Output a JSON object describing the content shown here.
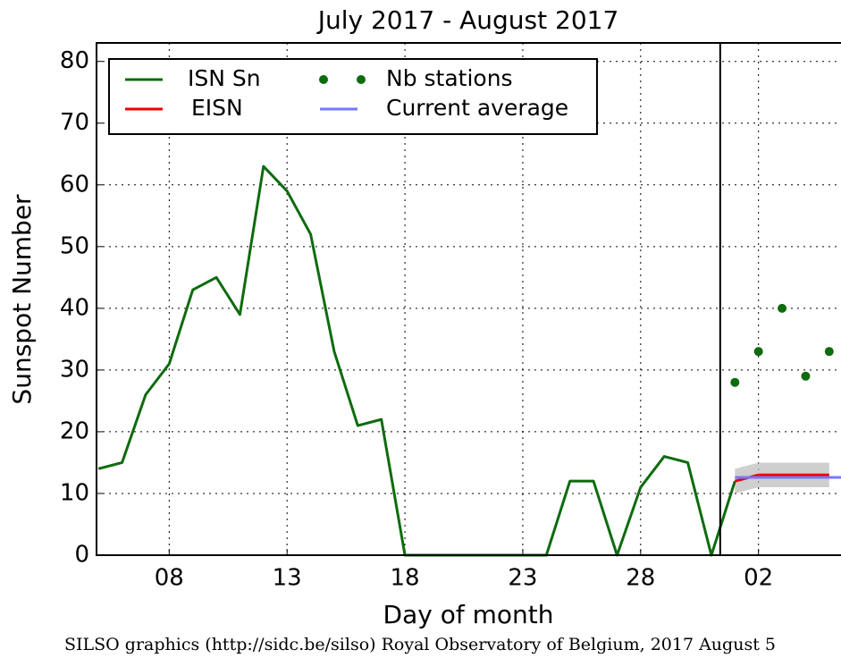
{
  "chart_data": {
    "type": "line",
    "title": "July 2017 - August 2017",
    "xlabel": "Day of month",
    "ylabel": "Sunspot Number",
    "footer": "SILSO graphics (http://sidc.be/silso) Royal Observatory of Belgium, 2017 August 5",
    "xlim": [
      "2017-07-04T22:00",
      "2017-08-05T12:00"
    ],
    "xticks": [
      {
        "value": "2017-07-08",
        "label": "08"
      },
      {
        "value": "2017-07-13",
        "label": "13"
      },
      {
        "value": "2017-07-18",
        "label": "18"
      },
      {
        "value": "2017-07-23",
        "label": "23"
      },
      {
        "value": "2017-07-28",
        "label": "28"
      },
      {
        "value": "2017-08-02",
        "label": "02"
      }
    ],
    "ylim": [
      0,
      83
    ],
    "yticks": [
      0,
      10,
      20,
      30,
      40,
      50,
      60,
      70,
      80
    ],
    "grid": true,
    "legend": "upper left",
    "vline_x": "2017-07-31T09:00",
    "series": [
      {
        "name": "ISN Sn",
        "kind": "line",
        "color": "#0e6b0e",
        "x": [
          "2017-07-05",
          "2017-07-06",
          "2017-07-07",
          "2017-07-08",
          "2017-07-09",
          "2017-07-10",
          "2017-07-11",
          "2017-07-12",
          "2017-07-13",
          "2017-07-14",
          "2017-07-15",
          "2017-07-16",
          "2017-07-17",
          "2017-07-18",
          "2017-07-19",
          "2017-07-20",
          "2017-07-21",
          "2017-07-22",
          "2017-07-23",
          "2017-07-24",
          "2017-07-25",
          "2017-07-26",
          "2017-07-27",
          "2017-07-28",
          "2017-07-29",
          "2017-07-30",
          "2017-07-31",
          "2017-08-01"
        ],
        "values": [
          14,
          15,
          26,
          31,
          43,
          45,
          39,
          63,
          59,
          52,
          33,
          21,
          22,
          0,
          0,
          0,
          0,
          0,
          0,
          0,
          12,
          12,
          0,
          11,
          16,
          15,
          0,
          12
        ]
      },
      {
        "name": "Nb stations",
        "kind": "dots",
        "color": "#0e6b0e",
        "x": [
          "2017-08-01",
          "2017-08-02",
          "2017-08-03",
          "2017-08-04",
          "2017-08-05"
        ],
        "values": [
          28,
          33,
          40,
          29,
          33
        ]
      },
      {
        "name": "EISN",
        "kind": "line",
        "color": "#ee0000",
        "x": [
          "2017-08-01",
          "2017-08-02",
          "2017-08-03",
          "2017-08-04",
          "2017-08-05"
        ],
        "values": [
          12,
          13,
          13,
          13,
          13
        ],
        "errors": [
          2,
          2,
          2,
          2,
          2
        ]
      },
      {
        "name": "Current average",
        "kind": "line",
        "color": "#7777ff",
        "x": [
          "2017-08-01",
          "2017-08-05T12:00"
        ],
        "values": [
          12.6,
          12.6
        ]
      }
    ]
  }
}
